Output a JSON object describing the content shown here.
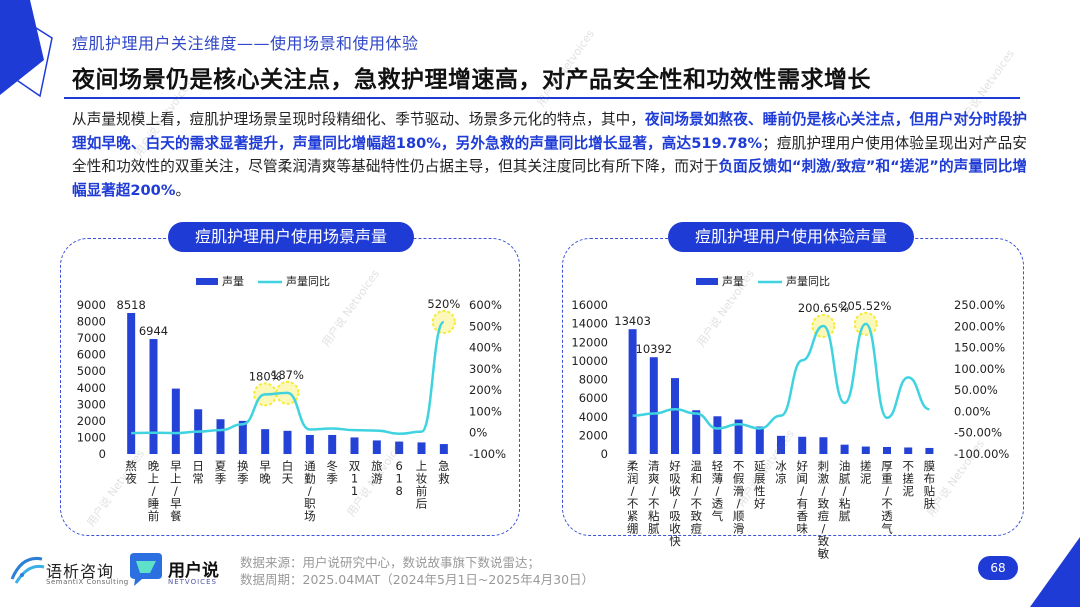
{
  "header": {
    "section_title": "痘肌护理用户关注维度——使用场景和使用体验",
    "main_title": "夜间场景仍是核心关注点，急救护理增速高，对产品安全性和功效性需求增长"
  },
  "body": {
    "seg1": "从声量规模上看，痘肌护理场景呈现时段精细化、季节驱动、场景多元化的特点，其中，",
    "seg2": "夜间场景如熬夜、睡前仍是核心关注点，但用户对分时段护理如早晚、白天的需求显著提升，声量同比增幅超180%，另外急救的声量同比增长显著，高达519.78%",
    "seg3": "；痘肌护理用户使用体验呈现出对产品安全性和功效性的双重关注，尽管柔润清爽等基础特性仍占据主导，但其关注度同比有所下降，而对于",
    "seg4": "负面反馈如“刺激/致痘”和“搓泥”的声量同比增幅显著超200%",
    "seg5": "。"
  },
  "panels": {
    "left_title": "痘肌护理用户使用场景声量",
    "right_title": "痘肌护理用户使用体验声量"
  },
  "chart_data": [
    {
      "type": "bar",
      "title": "痘肌护理用户使用场景声量",
      "legend": [
        "声量",
        "声量同比"
      ],
      "legend_position": "top-left",
      "categories": [
        "熬夜",
        "晚上/睡前",
        "早上/早餐",
        "日常",
        "夏季",
        "换季",
        "早晚",
        "白天",
        "通勤/职场",
        "冬季",
        "双11",
        "旅游",
        "618",
        "上妆前后",
        "急救"
      ],
      "series": [
        {
          "name": "声量",
          "kind": "bar",
          "axis": "left",
          "values": [
            8518,
            6944,
            3950,
            2700,
            2100,
            2000,
            1500,
            1400,
            1150,
            1150,
            1000,
            820,
            750,
            700,
            600
          ]
        },
        {
          "name": "声量同比",
          "kind": "line",
          "axis": "right",
          "unit": "%",
          "values": [
            -2,
            0,
            -2,
            5,
            12,
            40,
            180,
            187,
            15,
            20,
            12,
            10,
            -5,
            5,
            520
          ]
        }
      ],
      "data_labels": [
        {
          "series": 0,
          "index": 0,
          "text": "8518"
        },
        {
          "series": 0,
          "index": 1,
          "text": "6944"
        },
        {
          "series": 1,
          "index": 6,
          "text": "180%"
        },
        {
          "series": 1,
          "index": 7,
          "text": "187%"
        },
        {
          "series": 1,
          "index": 14,
          "text": "520%"
        }
      ],
      "highlights": [
        {
          "series": 1,
          "index": 6
        },
        {
          "series": 1,
          "index": 7
        },
        {
          "series": 1,
          "index": 14
        }
      ],
      "y_left": {
        "min": 0,
        "max": 9000,
        "step": 1000
      },
      "y_right": {
        "min": -100,
        "max": 600,
        "step": 100,
        "suffix": "%"
      }
    },
    {
      "type": "bar",
      "title": "痘肌护理用户使用体验声量",
      "legend": [
        "声量",
        "声量同比"
      ],
      "legend_position": "top-left",
      "categories": [
        "柔润/不紧绷",
        "清爽/不粘腻",
        "好吸收/吸收快",
        "温和/不致痘",
        "轻薄/透气",
        "不假滑/顺滑",
        "延展性好",
        "冰凉",
        "好闻/有香味",
        "刺激/致痘/致敏",
        "油腻/粘腻",
        "搓泥",
        "厚重/不透气",
        "不搓泥",
        "膜布贴肤"
      ],
      "series": [
        {
          "name": "声量",
          "kind": "bar",
          "axis": "left",
          "values": [
            13403,
            10392,
            8150,
            4700,
            4050,
            3700,
            2950,
            1950,
            1850,
            1800,
            1000,
            800,
            750,
            700,
            650
          ]
        },
        {
          "name": "声量同比",
          "kind": "line",
          "axis": "right",
          "unit": "%",
          "values": [
            -10,
            -5,
            5,
            -5,
            -40,
            -30,
            -40,
            -10,
            120,
            200.65,
            20,
            205.52,
            -15,
            80,
            5
          ]
        }
      ],
      "data_labels": [
        {
          "series": 0,
          "index": 0,
          "text": "13403"
        },
        {
          "series": 0,
          "index": 1,
          "text": "10392"
        },
        {
          "series": 1,
          "index": 9,
          "text": "200.65%"
        },
        {
          "series": 1,
          "index": 11,
          "text": "205.52%"
        }
      ],
      "highlights": [
        {
          "series": 1,
          "index": 9
        },
        {
          "series": 1,
          "index": 11
        }
      ],
      "y_left": {
        "min": 0,
        "max": 16000,
        "step": 2000
      },
      "y_right": {
        "min": -100,
        "max": 250,
        "step": 50,
        "suffix": "%",
        "decimals": 2
      }
    }
  ],
  "footer": {
    "logo1_name": "语析咨询",
    "logo1_sub": "SemantiX Consulting",
    "logo2_name": "用户说",
    "logo2_sub": "NETVOICES",
    "source": "数据来源：用户说研究中心，数说故事旗下数说雷达；",
    "period": "数据周期：2025.04MAT（2024年5月1日~2025年4月30日）",
    "page_number": "68"
  },
  "colors": {
    "accent": "#1f3bd6",
    "bar": "#2542d6",
    "line": "#3fd3e0",
    "highlight": "#f3ec3a"
  }
}
